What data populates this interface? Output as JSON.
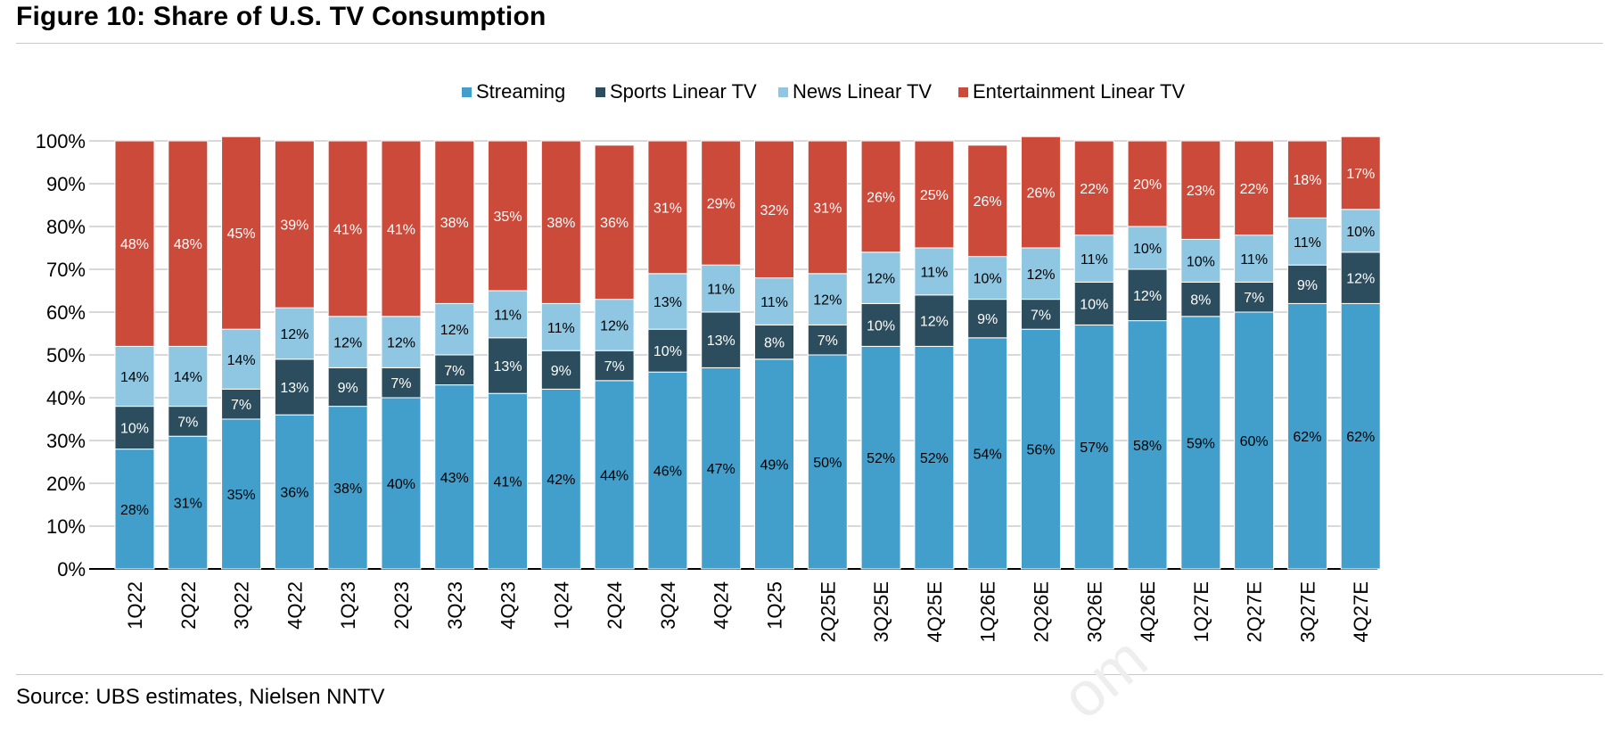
{
  "title": "Figure 10: Share of U.S. TV Consumption",
  "source": "Source: UBS estimates, Nielsen NNTV",
  "colors": {
    "streaming": "#429fcc",
    "sports": "#2c4d5e",
    "news": "#8fc7e3",
    "entertainment": "#cc4a3a",
    "grid": "#d9d9d9"
  },
  "chart_data": {
    "type": "bar",
    "stacked": true,
    "title": "Figure 10: Share of U.S. TV Consumption",
    "xlabel": "",
    "ylabel": "",
    "ylim": [
      0,
      100
    ],
    "yticks": [
      "0%",
      "10%",
      "20%",
      "30%",
      "40%",
      "50%",
      "60%",
      "70%",
      "80%",
      "90%",
      "100%"
    ],
    "legend_position": "top-center",
    "grid": true,
    "categories": [
      "1Q22",
      "2Q22",
      "3Q22",
      "4Q22",
      "1Q23",
      "2Q23",
      "3Q23",
      "4Q23",
      "1Q24",
      "2Q24",
      "3Q24",
      "4Q24",
      "1Q25",
      "2Q25E",
      "3Q25E",
      "4Q25E",
      "1Q26E",
      "2Q26E",
      "3Q26E",
      "4Q26E",
      "1Q27E",
      "2Q27E",
      "3Q27E",
      "4Q27E"
    ],
    "series": [
      {
        "name": "Streaming",
        "color_key": "streaming",
        "values": [
          28,
          31,
          35,
          36,
          38,
          40,
          43,
          41,
          42,
          44,
          46,
          47,
          49,
          50,
          52,
          52,
          54,
          56,
          57,
          58,
          59,
          60,
          62,
          62
        ]
      },
      {
        "name": "Sports Linear TV",
        "color_key": "sports",
        "values": [
          10,
          7,
          7,
          13,
          9,
          7,
          7,
          13,
          9,
          7,
          10,
          13,
          8,
          7,
          10,
          12,
          9,
          7,
          10,
          12,
          8,
          7,
          9,
          12
        ]
      },
      {
        "name": "News Linear TV",
        "color_key": "news",
        "values": [
          14,
          14,
          14,
          12,
          12,
          12,
          12,
          11,
          11,
          12,
          13,
          11,
          11,
          12,
          12,
          11,
          10,
          12,
          11,
          10,
          10,
          11,
          11,
          10
        ]
      },
      {
        "name": "Entertainment Linear TV",
        "color_key": "entertainment",
        "values": [
          48,
          48,
          45,
          39,
          41,
          41,
          38,
          35,
          38,
          36,
          31,
          29,
          32,
          31,
          26,
          25,
          26,
          26,
          22,
          20,
          23,
          22,
          18,
          17
        ]
      }
    ]
  }
}
